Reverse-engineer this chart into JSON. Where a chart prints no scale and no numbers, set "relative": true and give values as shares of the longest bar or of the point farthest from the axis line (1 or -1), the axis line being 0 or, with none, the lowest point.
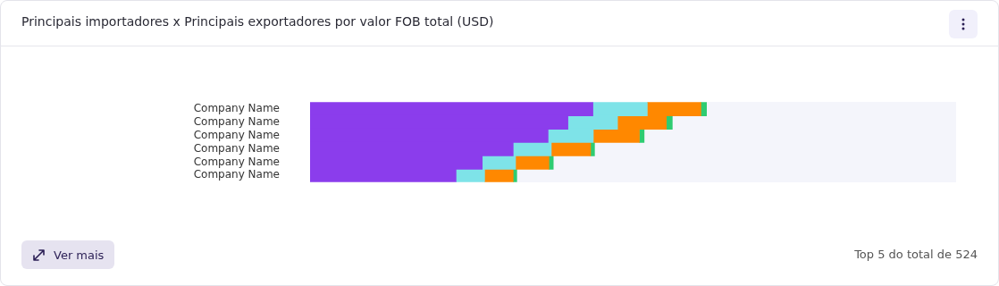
{
  "chart_data": {
    "type": "bar",
    "title": "Principais importadores x Principais exportadores por valor FOB total (USD)",
    "categories": [
      "Company Name",
      "Company Name",
      "Company Name",
      "Company Name",
      "Company Name",
      "Company Name"
    ],
    "orientation": "horizontal",
    "stacked": true,
    "relative": true,
    "legend": false,
    "series": [
      {
        "color": "#8b3dec",
        "values": [
          0.713,
          0.65,
          0.6,
          0.512,
          0.434,
          0.368
        ]
      },
      {
        "color": "#7ee3e8",
        "values": [
          0.137,
          0.125,
          0.114,
          0.096,
          0.084,
          0.072
        ]
      },
      {
        "color": "#ff8800",
        "values": [
          0.135,
          0.123,
          0.116,
          0.099,
          0.084,
          0.072
        ]
      },
      {
        "color": "#2ecc71",
        "values": [
          0.015,
          0.015,
          0.012,
          0.01,
          0.011,
          0.009
        ]
      }
    ],
    "annotations": [
      "Ver mais",
      "Top 5 do total de 524"
    ]
  }
}
